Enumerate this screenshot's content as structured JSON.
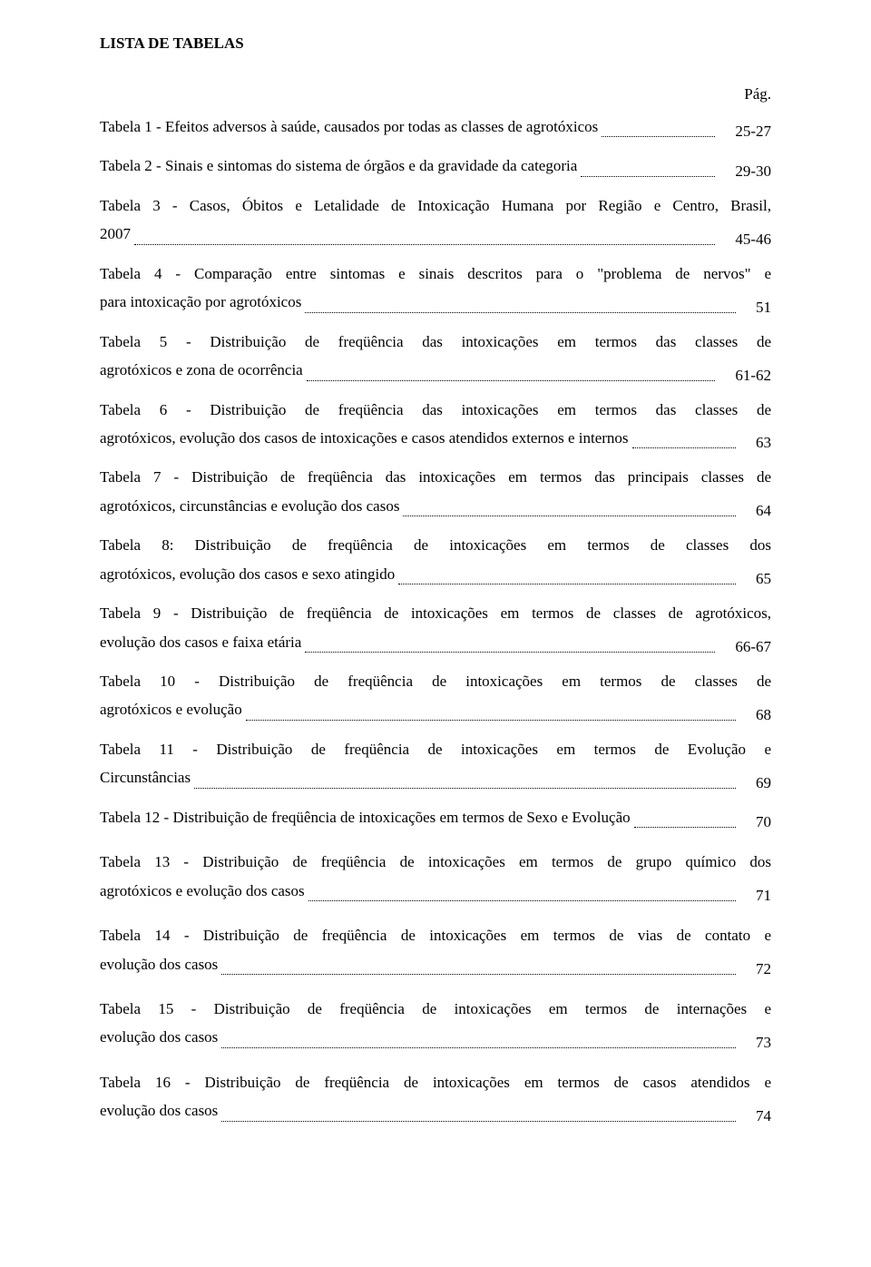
{
  "doc": {
    "title": "LISTA DE TABELAS",
    "page_header": "Pág.",
    "entries": [
      {
        "lines": [
          "Tabela 1 - Efeitos adversos à saúde, causados por todas as classes de agrotóxicos"
        ],
        "page": "25-27"
      },
      {
        "lines": [
          "Tabela 2 - Sinais e sintomas do sistema de órgãos e da gravidade da categoria"
        ],
        "page": "29-30"
      },
      {
        "lines": [
          "Tabela 3 - Casos, Óbitos e Letalidade de Intoxicação Humana por Região e Centro, Brasil,",
          "2007"
        ],
        "page": "45-46"
      },
      {
        "lines": [
          "Tabela 4 - Comparação entre sintomas e sinais descritos para o \"problema de nervos\" e",
          "para intoxicação por agrotóxicos"
        ],
        "page": "51"
      },
      {
        "lines": [
          "Tabela 5 - Distribuição de freqüência das intoxicações em termos das classes de",
          "agrotóxicos e zona de ocorrência"
        ],
        "page": "61-62"
      },
      {
        "lines": [
          "Tabela 6 - Distribuição de freqüência das intoxicações em termos das classes de",
          "agrotóxicos, evolução dos casos de intoxicações e casos atendidos externos e internos"
        ],
        "page": "63"
      },
      {
        "lines": [
          "Tabela 7 - Distribuição de freqüência das intoxicações em termos das principais classes de",
          "agrotóxicos, circunstâncias e evolução dos casos"
        ],
        "page": "64"
      },
      {
        "lines": [
          "Tabela 8: Distribuição de freqüência de intoxicações em termos de classes dos",
          "agrotóxicos, evolução dos casos e sexo atingido"
        ],
        "page": "65"
      },
      {
        "lines": [
          "Tabela 9 - Distribuição de freqüência de intoxicações em termos de classes de agrotóxicos,",
          "evolução dos casos e faixa etária"
        ],
        "page": "66-67"
      },
      {
        "lines": [
          "Tabela 10 - Distribuição de freqüência de intoxicações em termos de classes de",
          "agrotóxicos e evolução"
        ],
        "page": "68"
      },
      {
        "lines": [
          "Tabela 11 - Distribuição de freqüência de intoxicações em termos de Evolução e",
          "Circunstâncias"
        ],
        "page": "69"
      },
      {
        "lines": [
          "Tabela 12 - Distribuição de freqüência de intoxicações em termos de Sexo e Evolução"
        ],
        "page": "70"
      },
      {
        "lines": [
          "Tabela 13 - Distribuição de freqüência de intoxicações em termos de grupo químico dos",
          "agrotóxicos e evolução dos casos"
        ],
        "page": "71"
      },
      {
        "lines": [
          "Tabela 14 - Distribuição de freqüência de intoxicações em termos de vias de contato e",
          "evolução dos casos"
        ],
        "page": "72"
      },
      {
        "lines": [
          "Tabela 15 - Distribuição de freqüência de intoxicações em termos de internações e",
          "evolução dos casos"
        ],
        "page": "73"
      },
      {
        "lines": [
          "Tabela 16 - Distribuição de freqüência de intoxicações em termos de casos atendidos e",
          "evolução dos casos"
        ],
        "page": "74"
      }
    ]
  }
}
